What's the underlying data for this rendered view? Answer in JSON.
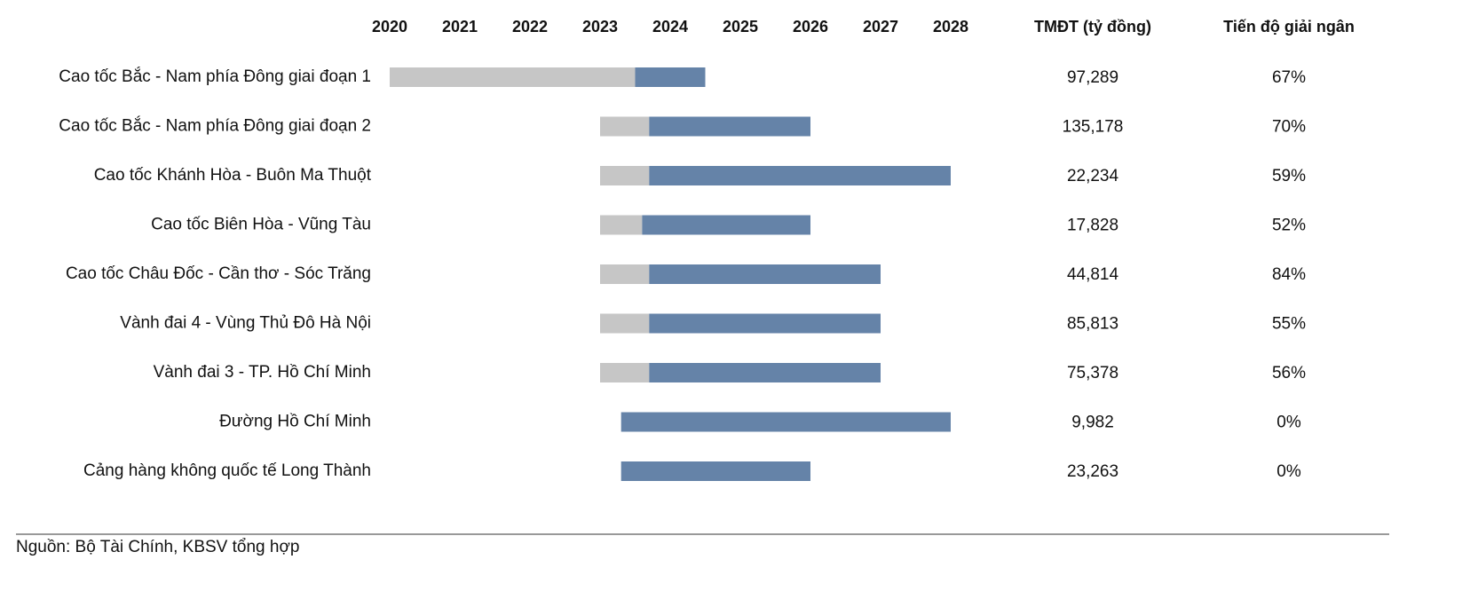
{
  "chart_data": {
    "type": "gantt",
    "categories": [
      "Cao tốc Bắc - Nam phía Đông giai đoạn 1",
      "Cao tốc Bắc - Nam phía Đông giai đoạn 2",
      "Cao tốc Khánh Hòa - Buôn Ma Thuột",
      "Cao tốc Biên Hòa - Vũng Tàu",
      "Cao tốc Châu Đốc - Cần thơ - Sóc Trăng",
      "Vành đai 4 - Vùng Thủ Đô Hà Nội",
      "Vành đai 3 - TP. Hồ Chí Minh",
      "Đường Hồ Chí Minh",
      "Cảng hàng không quốc tế Long Thành"
    ],
    "phases": [
      {
        "color": "#c6c6c6",
        "start": [
          2020,
          2023,
          2023,
          2023,
          2023,
          2023,
          2023,
          null,
          null
        ],
        "end": [
          2023.5,
          2023.7,
          2023.7,
          2023.6,
          2023.7,
          2023.7,
          2023.7,
          null,
          null
        ]
      },
      {
        "color": "#6583a8",
        "start": [
          2023.5,
          2023.7,
          2023.7,
          2023.6,
          2023.7,
          2023.7,
          2023.7,
          2023.3,
          2023.3
        ],
        "end": [
          2024.5,
          2026,
          2028,
          2026,
          2027,
          2027,
          2027,
          2028,
          2026
        ]
      }
    ],
    "xlim": [
      2020,
      2028
    ],
    "xticks": [
      2020,
      2021,
      2022,
      2023,
      2024,
      2025,
      2026,
      2027,
      2028
    ],
    "columns": [
      {
        "header": "TMĐT (tỷ đồng)",
        "values": [
          97289,
          135178,
          22234,
          17828,
          44814,
          85813,
          75378,
          9982,
          23263
        ],
        "value_labels": [
          "97,289",
          "135,178",
          "22,234",
          "17,828",
          "44,814",
          "85,813",
          "75,378",
          "9,982",
          "23,263"
        ]
      },
      {
        "header": "Tiến độ giải ngân",
        "values": [
          67,
          70,
          59,
          52,
          84,
          55,
          56,
          0,
          0
        ],
        "value_labels": [
          "67%",
          "70%",
          "59%",
          "52%",
          "84%",
          "55%",
          "56%",
          "0%",
          "0%"
        ]
      }
    ],
    "source": "Nguồn: Bộ Tài Chính, KBSV tổng hợp"
  }
}
